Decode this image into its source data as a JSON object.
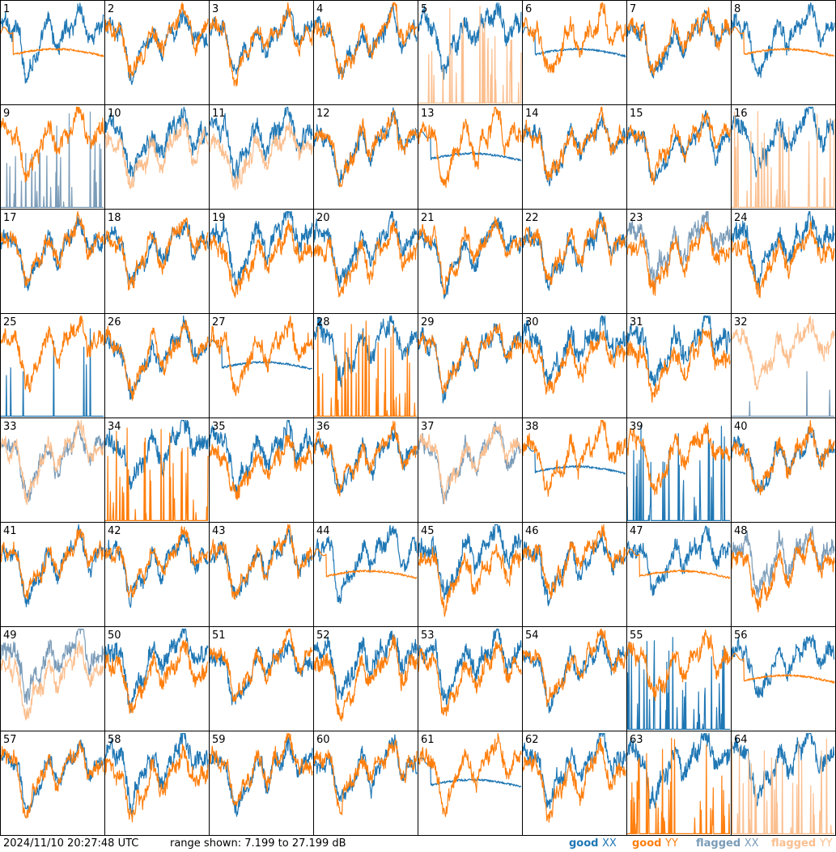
{
  "footer": {
    "timestamp": "2024/11/10 20:27:48 UTC",
    "range_text": "range shown: 7.199 to 27.199 dB"
  },
  "legend": [
    {
      "state": "good",
      "pol": "XX",
      "color": "#1f77b4"
    },
    {
      "state": "good",
      "pol": "YY",
      "color": "#ff7f0e"
    },
    {
      "state": "flagged",
      "pol": "XX",
      "color": "#7b9cb8"
    },
    {
      "state": "flagged",
      "pol": "YY",
      "color": "#fbbf8f"
    }
  ],
  "chart_data": {
    "type": "line",
    "grid": {
      "rows": 8,
      "cols": 8
    },
    "ylim": [
      7.199,
      27.199
    ],
    "y_unit": "dB",
    "panels": [
      {
        "id": "1",
        "xx": "good",
        "yy": "good",
        "mode": "smooth-yy"
      },
      {
        "id": "2",
        "xx": "good",
        "yy": "good",
        "mode": "normal"
      },
      {
        "id": "3",
        "xx": "good",
        "yy": "good",
        "mode": "normal"
      },
      {
        "id": "4",
        "xx": "good",
        "yy": "good",
        "mode": "normal"
      },
      {
        "id": "5",
        "xx": "good",
        "yy": "flagged",
        "mode": "spikes-yy"
      },
      {
        "id": "6",
        "xx": "good",
        "yy": "good",
        "mode": "smooth-xx"
      },
      {
        "id": "7",
        "xx": "good",
        "yy": "good",
        "mode": "normal"
      },
      {
        "id": "8",
        "xx": "good",
        "yy": "good",
        "mode": "smooth-yy"
      },
      {
        "id": "9",
        "xx": "flagged",
        "yy": "good",
        "mode": "spikes-xx"
      },
      {
        "id": "10",
        "xx": "good",
        "yy": "flagged",
        "mode": "offset"
      },
      {
        "id": "11",
        "xx": "good",
        "yy": "flagged",
        "mode": "offset"
      },
      {
        "id": "12",
        "xx": "good",
        "yy": "good",
        "mode": "normal"
      },
      {
        "id": "13",
        "xx": "good",
        "yy": "good",
        "mode": "smooth-xx"
      },
      {
        "id": "14",
        "xx": "good",
        "yy": "good",
        "mode": "normal"
      },
      {
        "id": "15",
        "xx": "good",
        "yy": "good",
        "mode": "normal"
      },
      {
        "id": "16",
        "xx": "good",
        "yy": "flagged",
        "mode": "spikes-yy"
      },
      {
        "id": "17",
        "xx": "good",
        "yy": "good",
        "mode": "normal"
      },
      {
        "id": "18",
        "xx": "good",
        "yy": "good",
        "mode": "normal"
      },
      {
        "id": "19",
        "xx": "good",
        "yy": "good",
        "mode": "offset"
      },
      {
        "id": "20",
        "xx": "good",
        "yy": "good",
        "mode": "offset"
      },
      {
        "id": "21",
        "xx": "good",
        "yy": "good",
        "mode": "normal"
      },
      {
        "id": "22",
        "xx": "good",
        "yy": "good",
        "mode": "normal"
      },
      {
        "id": "23",
        "xx": "flagged",
        "yy": "good",
        "mode": "offset"
      },
      {
        "id": "24",
        "xx": "good",
        "yy": "good",
        "mode": "offset"
      },
      {
        "id": "25",
        "xx": "good",
        "yy": "good",
        "mode": "spikes-xx-few"
      },
      {
        "id": "26",
        "xx": "good",
        "yy": "good",
        "mode": "normal"
      },
      {
        "id": "27",
        "xx": "good",
        "yy": "good",
        "mode": "smooth-xx"
      },
      {
        "id": "28",
        "xx": "good",
        "yy": "good",
        "mode": "spikes-yy"
      },
      {
        "id": "29",
        "xx": "good",
        "yy": "good",
        "mode": "normal"
      },
      {
        "id": "30",
        "xx": "good",
        "yy": "good",
        "mode": "offset"
      },
      {
        "id": "31",
        "xx": "good",
        "yy": "good",
        "mode": "offset"
      },
      {
        "id": "32",
        "xx": "flagged",
        "yy": "flagged",
        "mode": "spikes-xx-few"
      },
      {
        "id": "33",
        "xx": "flagged",
        "yy": "flagged",
        "mode": "normal"
      },
      {
        "id": "34",
        "xx": "good",
        "yy": "good",
        "mode": "spikes-yy"
      },
      {
        "id": "35",
        "xx": "good",
        "yy": "good",
        "mode": "offset"
      },
      {
        "id": "36",
        "xx": "good",
        "yy": "good",
        "mode": "normal"
      },
      {
        "id": "37",
        "xx": "flagged",
        "yy": "flagged",
        "mode": "normal"
      },
      {
        "id": "38",
        "xx": "good",
        "yy": "good",
        "mode": "smooth-xx"
      },
      {
        "id": "39",
        "xx": "good",
        "yy": "good",
        "mode": "spikes-xx"
      },
      {
        "id": "40",
        "xx": "good",
        "yy": "good",
        "mode": "normal"
      },
      {
        "id": "41",
        "xx": "good",
        "yy": "good",
        "mode": "normal"
      },
      {
        "id": "42",
        "xx": "good",
        "yy": "good",
        "mode": "normal"
      },
      {
        "id": "43",
        "xx": "good",
        "yy": "good",
        "mode": "normal"
      },
      {
        "id": "44",
        "xx": "good",
        "yy": "good",
        "mode": "smooth-yy"
      },
      {
        "id": "45",
        "xx": "good",
        "yy": "good",
        "mode": "offset"
      },
      {
        "id": "46",
        "xx": "good",
        "yy": "good",
        "mode": "normal"
      },
      {
        "id": "47",
        "xx": "good",
        "yy": "good",
        "mode": "smooth-yy"
      },
      {
        "id": "48",
        "xx": "flagged",
        "yy": "good",
        "mode": "offset"
      },
      {
        "id": "49",
        "xx": "flagged",
        "yy": "flagged",
        "mode": "offset"
      },
      {
        "id": "50",
        "xx": "good",
        "yy": "good",
        "mode": "offset"
      },
      {
        "id": "51",
        "xx": "good",
        "yy": "good",
        "mode": "normal"
      },
      {
        "id": "52",
        "xx": "good",
        "yy": "good",
        "mode": "offset"
      },
      {
        "id": "53",
        "xx": "good",
        "yy": "good",
        "mode": "offset"
      },
      {
        "id": "54",
        "xx": "good",
        "yy": "good",
        "mode": "normal"
      },
      {
        "id": "55",
        "xx": "good",
        "yy": "good",
        "mode": "spikes-xx"
      },
      {
        "id": "56",
        "xx": "good",
        "yy": "good",
        "mode": "smooth-yy"
      },
      {
        "id": "57",
        "xx": "good",
        "yy": "good",
        "mode": "normal"
      },
      {
        "id": "58",
        "xx": "good",
        "yy": "good",
        "mode": "offset"
      },
      {
        "id": "59",
        "xx": "good",
        "yy": "good",
        "mode": "normal"
      },
      {
        "id": "60",
        "xx": "good",
        "yy": "good",
        "mode": "normal"
      },
      {
        "id": "61",
        "xx": "good",
        "yy": "good",
        "mode": "smooth-xx"
      },
      {
        "id": "62",
        "xx": "good",
        "yy": "good",
        "mode": "offset"
      },
      {
        "id": "63",
        "xx": "good",
        "yy": "good",
        "mode": "spikes-yy"
      },
      {
        "id": "64",
        "xx": "good",
        "yy": "flagged",
        "mode": "spikes-yy"
      }
    ]
  }
}
